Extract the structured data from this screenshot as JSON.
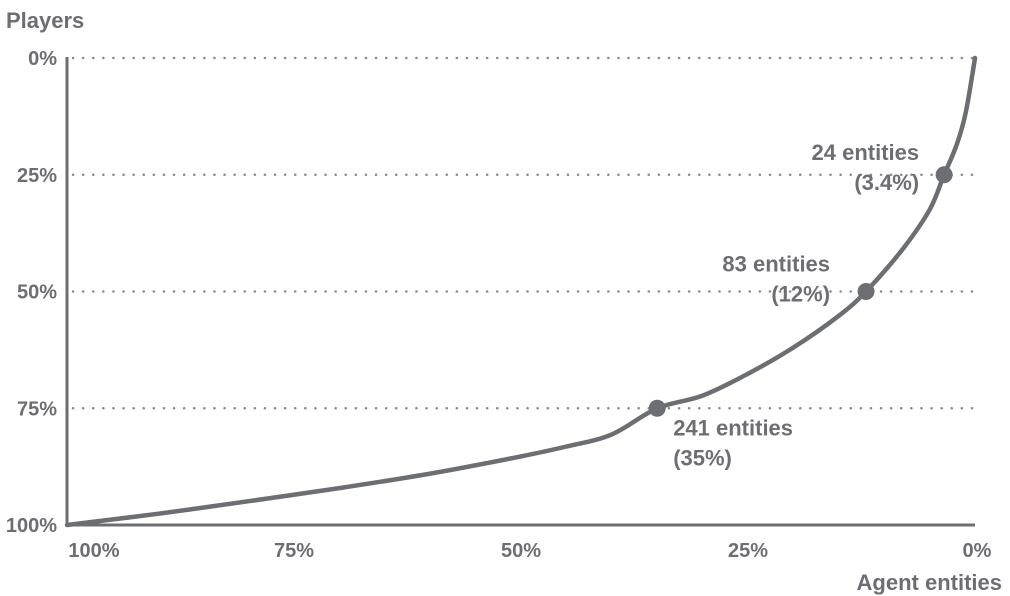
{
  "chart_data": {
    "type": "line",
    "ylabel": "Players",
    "xlabel": "Agent entities",
    "x_axis": {
      "range": [
        100,
        0
      ],
      "reversed": true,
      "ticks": [
        "100%",
        "75%",
        "50%",
        "25%",
        "0%"
      ],
      "tick_values": [
        100,
        75,
        50,
        25,
        0
      ]
    },
    "y_axis": {
      "range": [
        0,
        100
      ],
      "inverted": true,
      "ticks": [
        "0%",
        "25%",
        "50%",
        "75%",
        "100%"
      ],
      "tick_values": [
        0,
        25,
        50,
        75,
        100
      ]
    },
    "grid": "horizontal dotted",
    "colors": {
      "line": "#6d6e71",
      "text": "#6d6e71",
      "grid": "#8a8b8e"
    },
    "series": [
      {
        "x": [
          100,
          90,
          80,
          70,
          60,
          50,
          45,
          40,
          35,
          30,
          25,
          20,
          15,
          12,
          8,
          5,
          3.4,
          2,
          1,
          0
        ],
        "y": [
          100,
          97.6,
          94.9,
          92.1,
          89.0,
          85.3,
          83.2,
          80.6,
          75,
          72.3,
          67.6,
          62.0,
          55.2,
          50,
          41.0,
          32.5,
          25,
          18.5,
          11.5,
          0
        ]
      }
    ],
    "markers": [
      {
        "x": 35,
        "y": 75,
        "label_line1": "241 entities",
        "label_line2": "(35%)"
      },
      {
        "x": 12,
        "y": 50,
        "label_line1": "83 entities",
        "label_line2": "(12%)"
      },
      {
        "x": 3.4,
        "y": 25,
        "label_line1": "24 entities",
        "label_line2": "(3.4%)"
      }
    ]
  }
}
